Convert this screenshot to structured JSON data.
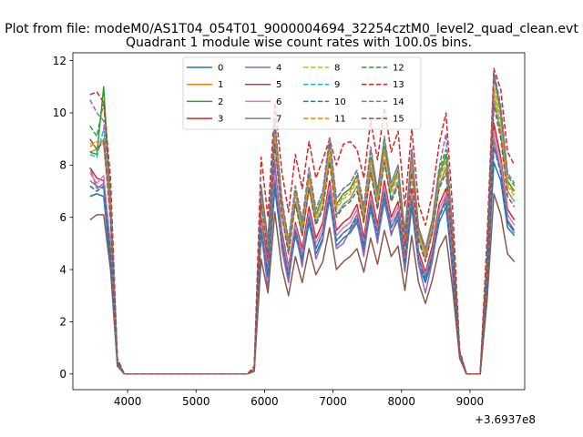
{
  "figure": {
    "suptitle": "Plot from file: modeM0/AS1T04_054T01_9000004694_32254cztM0_level2_quad_clean.evt",
    "title": "Quadrant 1 module wise count rates with 100.0s bins.",
    "offset_label": "+3.6937e8"
  },
  "chart_data": {
    "type": "line",
    "title": "Quadrant 1 module wise count rates with 100.0s bins.",
    "xlabel": "",
    "ylabel": "",
    "x_offset": 369370000,
    "xlim": [
      3200,
      9800
    ],
    "ylim": [
      -0.6,
      12.3
    ],
    "xticks": [
      4000,
      5000,
      6000,
      7000,
      8000,
      9000
    ],
    "xtick_labels": [
      "4000",
      "5000",
      "6000",
      "7000",
      "8000",
      "9000"
    ],
    "yticks": [
      0,
      2,
      4,
      6,
      8,
      10,
      12
    ],
    "ytick_labels": [
      "0",
      "2",
      "4",
      "6",
      "8",
      "10",
      "12"
    ],
    "grid": false,
    "legend": {
      "position": "top-center",
      "columns": 4
    },
    "x": [
      3450,
      3550,
      3650,
      3750,
      3850,
      3950,
      4050,
      4150,
      4250,
      4350,
      4450,
      4550,
      4650,
      4750,
      4850,
      4950,
      5050,
      5150,
      5250,
      5350,
      5450,
      5550,
      5650,
      5750,
      5850,
      5950,
      6050,
      6150,
      6250,
      6350,
      6450,
      6550,
      6650,
      6750,
      6850,
      6950,
      7050,
      7150,
      7250,
      7350,
      7450,
      7550,
      7650,
      7750,
      7850,
      7950,
      8050,
      8150,
      8250,
      8350,
      8450,
      8550,
      8650,
      8750,
      8850,
      8950,
      9050,
      9150,
      9250,
      9350,
      9450,
      9550,
      9650
    ],
    "series": [
      {
        "name": "0",
        "color": "#1f77b4",
        "dash": "solid",
        "values": [
          6.8,
          6.9,
          6.8,
          4.2,
          0.4,
          0,
          0,
          0,
          0,
          0,
          0,
          0,
          0,
          0,
          0,
          0,
          0,
          0,
          0,
          0,
          0,
          0,
          0,
          0,
          0.2,
          5.3,
          3.7,
          7.1,
          5.0,
          3.7,
          5.3,
          4.3,
          5.8,
          4.6,
          5.2,
          6.7,
          4.9,
          5.2,
          5.4,
          5.8,
          4.7,
          6.3,
          5.1,
          6.6,
          5.4,
          5.9,
          4.0,
          6.4,
          4.2,
          3.5,
          4.4,
          5.8,
          6.4,
          3.9,
          0.7,
          0,
          0,
          0,
          3.4,
          8.1,
          7.4,
          5.6,
          5.3
        ]
      },
      {
        "name": "1",
        "color": "#ff7f0e",
        "dash": "solid",
        "values": [
          8.5,
          8.6,
          9.0,
          6.3,
          0.5,
          0,
          0,
          0,
          0,
          0,
          0,
          0,
          0,
          0,
          0,
          0,
          0,
          0,
          0,
          0,
          0,
          0,
          0,
          0,
          0.2,
          6.7,
          4.7,
          9.0,
          6.2,
          4.7,
          6.6,
          5.3,
          7.1,
          5.8,
          6.4,
          8.3,
          6.1,
          6.5,
          6.7,
          7.2,
          5.8,
          7.8,
          6.4,
          8.2,
          6.7,
          7.3,
          5.0,
          7.9,
          5.2,
          4.4,
          5.4,
          7.2,
          7.9,
          4.9,
          0.8,
          0,
          0,
          0,
          4.2,
          10.6,
          9.2,
          7.0,
          6.6
        ]
      },
      {
        "name": "2",
        "color": "#2ca02c",
        "dash": "solid",
        "values": [
          8.5,
          8.4,
          11.0,
          6.5,
          0.5,
          0,
          0,
          0,
          0,
          0,
          0,
          0,
          0,
          0,
          0,
          0,
          0,
          0,
          0,
          0,
          0,
          0,
          0,
          0,
          0.2,
          7.0,
          5.0,
          9.5,
          6.6,
          5.0,
          7.0,
          5.7,
          7.6,
          6.1,
          6.8,
          8.8,
          6.5,
          6.9,
          7.1,
          7.6,
          6.2,
          8.3,
          6.8,
          8.7,
          7.1,
          7.8,
          5.3,
          8.4,
          5.5,
          4.6,
          5.8,
          7.6,
          8.4,
          5.2,
          0.8,
          0,
          0,
          0,
          4.4,
          11.4,
          10.0,
          7.4,
          7.0
        ]
      },
      {
        "name": "3",
        "color": "#d62728",
        "dash": "solid",
        "values": [
          7.9,
          7.5,
          7.4,
          4.9,
          0.4,
          0,
          0,
          0,
          0,
          0,
          0,
          0,
          0,
          0,
          0,
          0,
          0,
          0,
          0,
          0,
          0,
          0,
          0,
          0,
          0.2,
          6.0,
          4.3,
          8.0,
          5.5,
          4.1,
          5.8,
          4.8,
          6.4,
          5.2,
          5.8,
          7.4,
          5.5,
          5.8,
          6.0,
          6.5,
          5.2,
          7.0,
          5.7,
          7.4,
          6.0,
          6.6,
          4.5,
          7.1,
          4.7,
          3.9,
          4.9,
          6.5,
          7.1,
          4.4,
          0.7,
          0,
          0,
          0,
          3.8,
          9.6,
          8.3,
          6.3,
          5.9
        ]
      },
      {
        "name": "4",
        "color": "#9467bd",
        "dash": "solid",
        "values": [
          7.9,
          7.1,
          7.3,
          4.6,
          0.4,
          0,
          0,
          0,
          0,
          0,
          0,
          0,
          0,
          0,
          0,
          0,
          0,
          0,
          0,
          0,
          0,
          0,
          0,
          0,
          0.2,
          5.5,
          3.2,
          8.2,
          4.8,
          3.5,
          5.5,
          4.1,
          6.2,
          4.4,
          5.1,
          6.9,
          4.8,
          5.0,
          5.5,
          5.9,
          4.5,
          6.5,
          5.0,
          6.8,
          5.3,
          6.1,
          3.9,
          6.7,
          4.2,
          3.1,
          4.3,
          6.0,
          6.8,
          3.7,
          0.6,
          0,
          0,
          0,
          3.5,
          8.7,
          7.8,
          5.8,
          5.4
        ]
      },
      {
        "name": "5",
        "color": "#8c564b",
        "dash": "solid",
        "values": [
          5.9,
          6.1,
          6.1,
          4.0,
          0.3,
          0,
          0,
          0,
          0,
          0,
          0,
          0,
          0,
          0,
          0,
          0,
          0,
          0,
          0,
          0,
          0,
          0,
          0,
          0,
          0.1,
          4.4,
          3.1,
          6.2,
          4.1,
          3.0,
          4.5,
          3.5,
          4.8,
          3.8,
          4.3,
          5.6,
          4.0,
          4.3,
          4.5,
          4.8,
          3.9,
          5.2,
          4.2,
          5.5,
          4.5,
          4.9,
          3.2,
          5.3,
          3.5,
          2.7,
          3.6,
          4.8,
          5.3,
          3.2,
          0.6,
          0,
          0,
          0,
          2.8,
          6.9,
          6.1,
          4.6,
          4.3
        ]
      },
      {
        "name": "6",
        "color": "#e377c2",
        "dash": "solid",
        "values": [
          7.7,
          7.3,
          7.6,
          5.0,
          0.4,
          0,
          0,
          0,
          0,
          0,
          0,
          0,
          0,
          0,
          0,
          0,
          0,
          0,
          0,
          0,
          0,
          0,
          0,
          0,
          0.2,
          5.8,
          4.0,
          7.6,
          5.3,
          4.0,
          5.7,
          4.6,
          6.2,
          5.0,
          5.6,
          7.2,
          5.3,
          5.6,
          5.8,
          6.3,
          5.0,
          6.8,
          5.5,
          7.2,
          5.8,
          6.4,
          4.3,
          6.9,
          4.5,
          3.8,
          4.7,
          6.3,
          6.9,
          4.2,
          0.7,
          0,
          0,
          0,
          3.7,
          9.3,
          8.1,
          6.1,
          5.7
        ]
      },
      {
        "name": "7",
        "color": "#7f7f7f",
        "dash": "solid",
        "values": [
          7.4,
          7.2,
          7.1,
          4.7,
          0.4,
          0,
          0,
          0,
          0,
          0,
          0,
          0,
          0,
          0,
          0,
          0,
          0,
          0,
          0,
          0,
          0,
          0,
          0,
          0,
          0.2,
          5.6,
          3.9,
          7.4,
          5.1,
          3.8,
          5.5,
          4.4,
          6.0,
          4.8,
          5.4,
          7.0,
          5.1,
          5.4,
          5.6,
          6.1,
          4.9,
          6.6,
          5.4,
          7.0,
          5.6,
          6.2,
          4.2,
          6.7,
          4.4,
          3.7,
          4.6,
          6.1,
          6.7,
          4.1,
          0.7,
          0,
          0,
          0,
          3.6,
          9.0,
          7.8,
          5.9,
          5.5
        ]
      },
      {
        "name": "8",
        "color": "#bcbd22",
        "dash": "dashed",
        "values": [
          8.8,
          8.9,
          8.8,
          6.1,
          0.5,
          0,
          0,
          0,
          0,
          0,
          0,
          0,
          0,
          0,
          0,
          0,
          0,
          0,
          0,
          0,
          0,
          0,
          0,
          0,
          0.2,
          6.8,
          4.8,
          9.2,
          6.4,
          4.8,
          6.8,
          5.5,
          7.4,
          5.9,
          6.6,
          8.5,
          6.3,
          6.7,
          6.9,
          7.4,
          6.0,
          8.1,
          6.6,
          8.4,
          6.9,
          7.6,
          5.1,
          8.1,
          5.3,
          4.5,
          5.6,
          7.4,
          8.1,
          5.0,
          0.8,
          0,
          0,
          0,
          4.3,
          10.9,
          9.5,
          7.2,
          6.8
        ]
      },
      {
        "name": "9",
        "color": "#17becf",
        "dash": "dashed",
        "values": [
          8.4,
          8.3,
          9.4,
          6.0,
          0.5,
          0,
          0,
          0,
          0,
          0,
          0,
          0,
          0,
          0,
          0,
          0,
          0,
          0,
          0,
          0,
          0,
          0,
          0,
          0,
          0.2,
          6.6,
          4.7,
          8.9,
          6.2,
          4.7,
          6.6,
          5.4,
          7.2,
          5.8,
          6.4,
          8.3,
          6.1,
          6.5,
          6.7,
          7.2,
          5.9,
          7.9,
          6.4,
          8.2,
          6.7,
          7.4,
          5.0,
          7.9,
          5.2,
          4.4,
          5.5,
          7.2,
          7.9,
          4.9,
          0.8,
          0,
          0,
          0,
          4.2,
          10.6,
          9.3,
          7.0,
          6.6
        ]
      },
      {
        "name": "10",
        "color": "#1f77b4",
        "dash": "dashed",
        "values": [
          7.2,
          7.0,
          7.2,
          4.6,
          0.4,
          0,
          0,
          0,
          0,
          0,
          0,
          0,
          0,
          0,
          0,
          0,
          0,
          0,
          0,
          0,
          0,
          0,
          0,
          0,
          0.2,
          5.5,
          3.8,
          7.3,
          5.1,
          3.8,
          5.5,
          4.4,
          6.0,
          4.8,
          5.4,
          6.9,
          5.1,
          5.4,
          5.6,
          6.0,
          4.9,
          6.5,
          5.3,
          6.9,
          5.6,
          6.2,
          4.2,
          6.6,
          4.4,
          3.6,
          4.5,
          6.0,
          6.6,
          4.0,
          0.7,
          0,
          0,
          0,
          3.5,
          8.7,
          7.7,
          5.8,
          5.5
        ]
      },
      {
        "name": "11",
        "color": "#ff7f0e",
        "dash": "dashed",
        "values": [
          8.7,
          8.9,
          8.8,
          6.2,
          0.5,
          0,
          0,
          0,
          0,
          0,
          0,
          0,
          0,
          0,
          0,
          0,
          0,
          0,
          0,
          0,
          0,
          0,
          0,
          0,
          0.2,
          6.8,
          4.9,
          9.3,
          6.4,
          4.9,
          6.9,
          5.6,
          7.5,
          6.0,
          6.7,
          8.6,
          6.4,
          6.8,
          7.0,
          7.5,
          6.1,
          8.2,
          6.7,
          8.6,
          7.0,
          7.7,
          5.2,
          8.2,
          5.4,
          4.6,
          5.7,
          7.5,
          8.2,
          5.1,
          0.8,
          0,
          0,
          0,
          4.3,
          11.0,
          9.7,
          7.3,
          6.9
        ]
      },
      {
        "name": "12",
        "color": "#2ca02c",
        "dash": "dashed",
        "values": [
          9.5,
          9.1,
          10.4,
          6.8,
          0.5,
          0,
          0,
          0,
          0,
          0,
          0,
          0,
          0,
          0,
          0,
          0,
          0,
          0,
          0,
          0,
          0,
          0,
          0,
          0,
          0.2,
          7.2,
          5.1,
          9.7,
          6.8,
          5.1,
          7.2,
          5.9,
          7.9,
          6.3,
          7.0,
          9.0,
          6.7,
          7.1,
          7.3,
          7.8,
          6.4,
          8.6,
          7.0,
          9.0,
          7.3,
          8.0,
          5.4,
          8.6,
          5.6,
          4.8,
          5.9,
          7.8,
          8.6,
          5.3,
          0.8,
          0,
          0,
          0,
          4.5,
          11.5,
          10.1,
          7.6,
          7.2
        ]
      },
      {
        "name": "13",
        "color": "#d62728",
        "dash": "dashed",
        "values": [
          10.7,
          10.8,
          10.4,
          7.5,
          0.6,
          0,
          0,
          0,
          0,
          0,
          0,
          0,
          0,
          0,
          0,
          0,
          0,
          0,
          0,
          0,
          0,
          0,
          0,
          0,
          0.3,
          8.3,
          6.0,
          10.4,
          7.8,
          6.2,
          8.4,
          7.1,
          8.9,
          7.5,
          8.2,
          9.0,
          8.0,
          8.8,
          8.9,
          8.6,
          7.5,
          9.7,
          8.2,
          10.2,
          8.5,
          9.3,
          6.4,
          9.4,
          6.5,
          5.7,
          6.9,
          8.8,
          10.0,
          6.2,
          0.9,
          0,
          0,
          0,
          5.2,
          11.7,
          10.9,
          8.5,
          8.0
        ]
      },
      {
        "name": "14",
        "color": "#9467bd",
        "dash": "dashed",
        "values": [
          10.5,
          10.0,
          9.7,
          6.6,
          0.5,
          0,
          0,
          0,
          0,
          0,
          0,
          0,
          0,
          0,
          0,
          0,
          0,
          0,
          0,
          0,
          0,
          0,
          0,
          0,
          0.2,
          7.2,
          5.1,
          9.8,
          6.7,
          5.1,
          7.2,
          5.9,
          7.9,
          6.3,
          7.0,
          9.1,
          6.7,
          7.1,
          7.3,
          7.8,
          6.4,
          8.7,
          7.0,
          9.1,
          7.3,
          8.0,
          5.4,
          8.6,
          5.6,
          4.8,
          5.9,
          7.9,
          9.2,
          5.3,
          0.8,
          0,
          0,
          0,
          4.5,
          11.6,
          10.3,
          7.7,
          7.3
        ]
      },
      {
        "name": "15",
        "color": "#8c564b",
        "dash": "dashed",
        "values": [
          9.0,
          8.6,
          8.9,
          5.9,
          0.5,
          0,
          0,
          0,
          0,
          0,
          0,
          0,
          0,
          0,
          0,
          0,
          0,
          0,
          0,
          0,
          0,
          0,
          0,
          0,
          0.2,
          6.5,
          4.6,
          8.8,
          6.1,
          4.6,
          6.5,
          5.3,
          7.1,
          5.7,
          6.3,
          8.1,
          6.0,
          6.4,
          6.6,
          7.0,
          5.8,
          7.7,
          6.3,
          8.1,
          6.6,
          7.2,
          4.9,
          7.7,
          5.1,
          4.3,
          5.4,
          7.1,
          7.7,
          4.8,
          0.8,
          0,
          0,
          0,
          4.1,
          10.3,
          9.0,
          6.8,
          6.4
        ]
      }
    ]
  }
}
